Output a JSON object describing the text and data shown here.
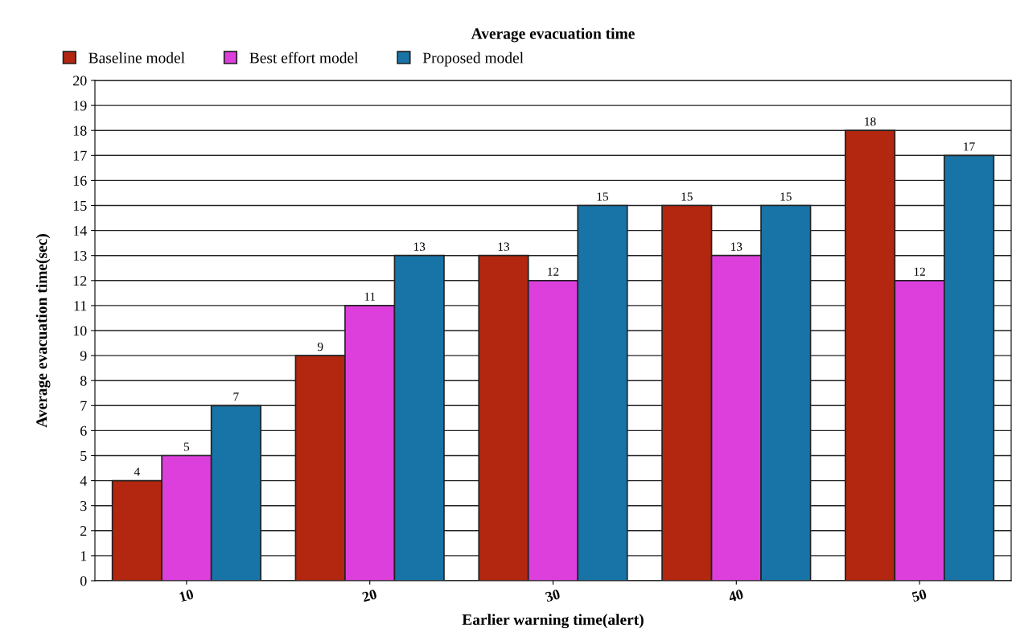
{
  "chart_data": {
    "type": "bar",
    "title": "Average evacuation time",
    "xlabel": "Earlier warning time(alert)",
    "ylabel": "Average evacuation time(sec)",
    "categories": [
      "10",
      "20",
      "30",
      "40",
      "50"
    ],
    "series": [
      {
        "name": "Baseline model",
        "color": "#b3260f",
        "values": [
          4,
          9,
          13,
          15,
          18
        ]
      },
      {
        "name": "Best effort model",
        "color": "#dd3fdd",
        "values": [
          5,
          11,
          12,
          13,
          12
        ]
      },
      {
        "name": "Proposed model",
        "color": "#1874a6",
        "values": [
          7,
          13,
          15,
          15,
          17
        ]
      }
    ],
    "ylim": [
      0,
      20
    ],
    "yticks": [
      0,
      1,
      2,
      3,
      4,
      5,
      6,
      7,
      8,
      9,
      10,
      11,
      12,
      13,
      14,
      15,
      16,
      17,
      18,
      19,
      20
    ],
    "grid": "y",
    "legend": "top left",
    "data_labels": true
  }
}
